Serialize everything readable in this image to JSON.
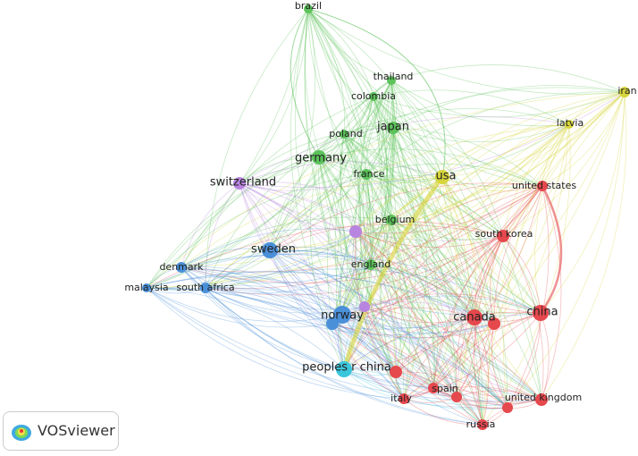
{
  "nodes": [
    {
      "label": "brazil"
    },
    {
      "label": "thailand"
    },
    {
      "label": "colombia"
    },
    {
      "label": "japan"
    },
    {
      "label": "poland"
    },
    {
      "label": "germany"
    },
    {
      "label": "switzerland"
    },
    {
      "label": "france"
    },
    {
      "label": "usa"
    },
    {
      "label": "iran"
    },
    {
      "label": "latvia"
    },
    {
      "label": "united states"
    },
    {
      "label": "belgium"
    },
    {
      "label": "south korea"
    },
    {
      "label": "sweden"
    },
    {
      "label": "denmark"
    },
    {
      "label": "malaysia"
    },
    {
      "label": "south africa"
    },
    {
      "label": "england"
    },
    {
      "label": "norway"
    },
    {
      "label": "canada"
    },
    {
      "label": "china"
    },
    {
      "label": "peoples r china"
    },
    {
      "label": "italy"
    },
    {
      "label": "spain"
    },
    {
      "label": "united kingdom"
    },
    {
      "label": "russia"
    }
  ],
  "logo": {
    "text": "VOSviewer"
  }
}
